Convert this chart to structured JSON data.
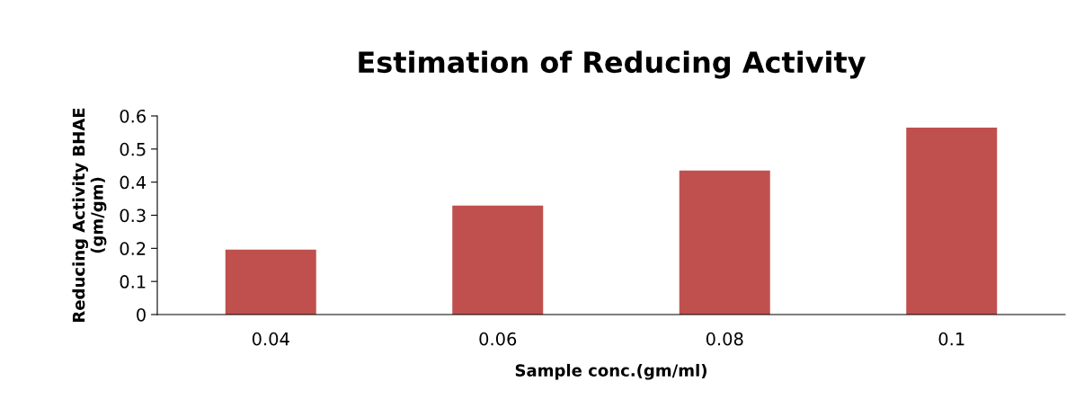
{
  "chart_data": {
    "type": "bar",
    "title": "Estimation of Reducing Activity",
    "xlabel": "Sample conc.(gm/ml)",
    "ylabel": "Reducing Activity BHAE\n(gm/gm)",
    "categories": [
      "0.04",
      "0.06",
      "0.08",
      "0.1"
    ],
    "values": [
      0.196,
      0.329,
      0.435,
      0.565
    ],
    "color": "#c0504d",
    "ylim": [
      0,
      0.6
    ],
    "yticks": [
      0,
      0.1,
      0.2,
      0.3,
      0.4,
      0.5,
      0.6
    ],
    "grid": false,
    "legend": false
  }
}
